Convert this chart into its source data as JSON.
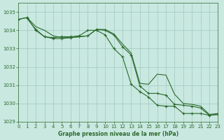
{
  "title": "Graphe pression niveau de la mer (hPa)",
  "background_color": "#c8e8e0",
  "grid_color": "#a0c8c0",
  "line_color": "#2d6a2d",
  "xmin": 0,
  "xmax": 23,
  "ymin": 1029,
  "ymax": 1035.5,
  "yticks": [
    1029,
    1030,
    1031,
    1032,
    1033,
    1034,
    1035
  ],
  "xticks": [
    0,
    1,
    2,
    3,
    4,
    5,
    6,
    7,
    8,
    9,
    10,
    11,
    12,
    13,
    14,
    15,
    16,
    17,
    18,
    19,
    20,
    21,
    22,
    23
  ],
  "line1_x": [
    0,
    1,
    2,
    3,
    4,
    5,
    6,
    7,
    8,
    9,
    10,
    11,
    12,
    13,
    14,
    15,
    16,
    17,
    18,
    19,
    20,
    21,
    22,
    23
  ],
  "line1_y": [
    1034.6,
    1034.7,
    1034.2,
    1034.0,
    1033.7,
    1033.6,
    1033.6,
    1033.65,
    1033.7,
    1034.05,
    1034.05,
    1033.8,
    1033.25,
    1032.75,
    1031.1,
    1031.05,
    1031.6,
    1031.55,
    1030.5,
    1030.0,
    1029.95,
    1029.85,
    1029.4,
    1029.45
  ],
  "line2_x": [
    0,
    1,
    2,
    3,
    4,
    5,
    6,
    7,
    8,
    9,
    10,
    11,
    12,
    13,
    14,
    15,
    16,
    17,
    18,
    19,
    20,
    21,
    22,
    23
  ],
  "line2_y": [
    1034.6,
    1034.7,
    1034.0,
    1033.65,
    1033.55,
    1033.55,
    1033.6,
    1033.65,
    1033.7,
    1034.05,
    1034.0,
    1033.75,
    1033.1,
    1032.65,
    1030.95,
    1030.55,
    1030.55,
    1030.45,
    1029.95,
    1029.9,
    1029.85,
    1029.75,
    1029.35,
    1029.4
  ],
  "line3_x": [
    1,
    2,
    3,
    4,
    5,
    6,
    7,
    8,
    9,
    10,
    11,
    12,
    13,
    14,
    15,
    16,
    17,
    18,
    19,
    20,
    21,
    22,
    23
  ],
  "line3_y": [
    1034.65,
    1034.05,
    1033.65,
    1033.6,
    1033.65,
    1033.65,
    1033.7,
    1034.0,
    1034.0,
    1033.75,
    1033.0,
    1032.55,
    1031.05,
    1030.65,
    1030.35,
    1029.9,
    1029.85,
    1029.85,
    1029.45,
    1029.45,
    1029.45,
    1029.35,
    1029.4
  ]
}
